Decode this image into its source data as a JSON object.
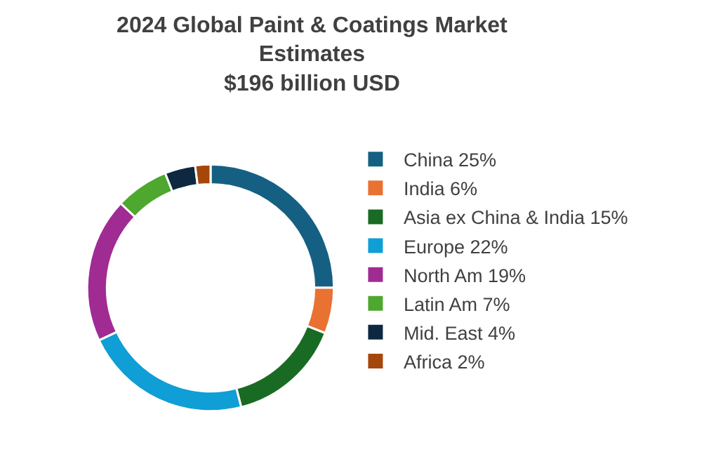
{
  "chart_data": {
    "type": "donut",
    "title": "2024 Global Paint & Coatings Market Estimates $196 billion USD",
    "categories": [
      "China 25%",
      "India 6%",
      "Asia ex China & India 15%",
      "Europe 22%",
      "North Am 19%",
      "Latin Am 7%",
      "Mid. East 4%",
      "Africa 2%"
    ],
    "values": [
      25,
      6,
      15,
      22,
      19,
      7,
      4,
      2
    ],
    "colors": [
      "#156082",
      "#e97132",
      "#196b24",
      "#0f9ed5",
      "#a02b93",
      "#4ea72e",
      "#0e2841",
      "#a5470a"
    ],
    "legend": "right"
  }
}
